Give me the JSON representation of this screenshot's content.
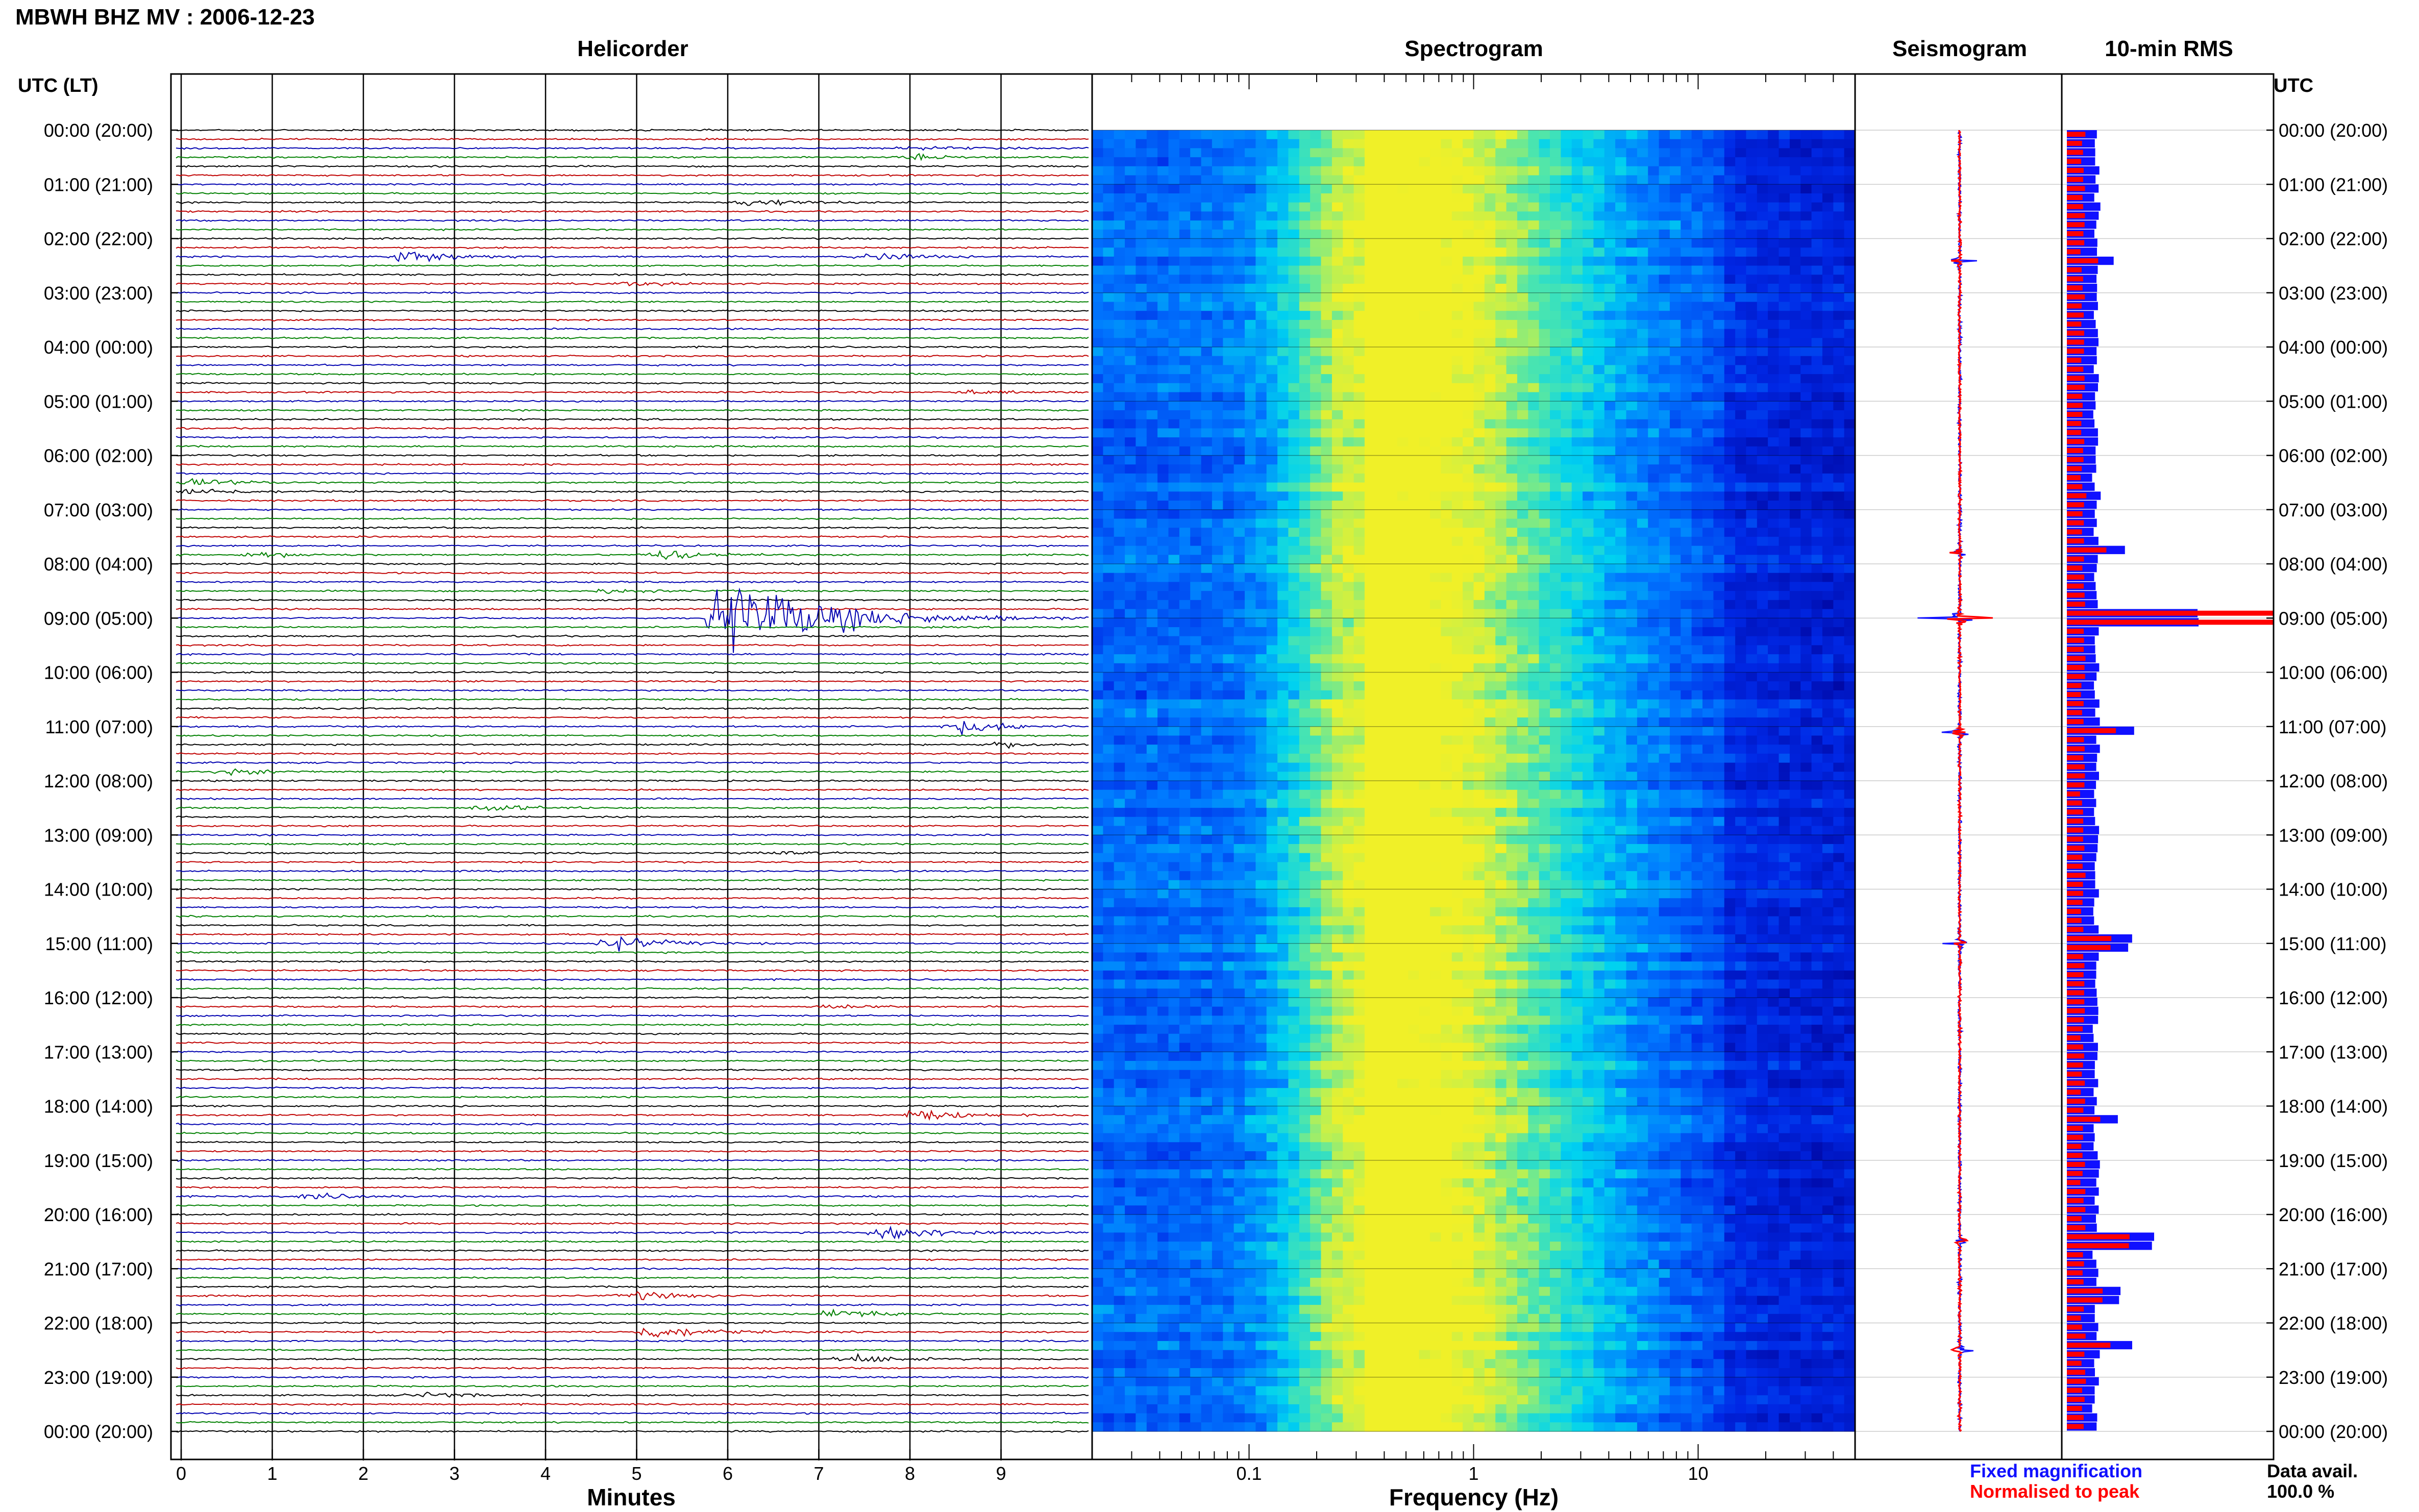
{
  "title": "MBWH BHZ MV : 2006-12-23",
  "panels": {
    "helicorder": "Helicorder",
    "spectrogram": "Spectrogram",
    "seismogram": "Seismogram",
    "rms": "10-min RMS"
  },
  "axis_labels": {
    "left_time": "UTC (LT)",
    "right_time": "UTC",
    "minutes": "Minutes",
    "frequency": "Frequency (Hz)"
  },
  "legend": {
    "fixed": "Fixed magnification",
    "normalised": "Normalised to peak",
    "data_avail_label": "Data avail.",
    "data_avail_value": "100.0 %"
  },
  "colors": {
    "black": "#000000",
    "red": "#c00000",
    "blue": "#0000b0",
    "green": "#008000",
    "rms_fixed": "#1010ff",
    "rms_norm": "#ff0000"
  },
  "chart_data": [
    {
      "type": "line",
      "title": "Helicorder",
      "xlabel": "Minutes",
      "x_ticks": [
        "0",
        "1",
        "2",
        "3",
        "4",
        "5",
        "6",
        "7",
        "8",
        "9"
      ],
      "xlim": [
        0,
        10
      ],
      "y_ticks": [
        "00:00 (20:00)",
        "01:00 (21:00)",
        "02:00 (22:00)",
        "03:00 (23:00)",
        "04:00 (00:00)",
        "05:00 (01:00)",
        "06:00 (02:00)",
        "07:00 (03:00)",
        "08:00 (04:00)",
        "09:00 (05:00)",
        "10:00 (06:00)",
        "11:00 (07:00)",
        "12:00 (08:00)",
        "13:00 (09:00)",
        "14:00 (10:00)",
        "15:00 (11:00)",
        "16:00 (12:00)",
        "17:00 (13:00)",
        "18:00 (14:00)",
        "19:00 (15:00)",
        "20:00 (16:00)",
        "21:00 (17:00)",
        "22:00 (18:00)",
        "23:00 (19:00)",
        "00:00 (20:00)"
      ],
      "lines_per_hour": 6,
      "trace_colors": [
        "black",
        "red",
        "blue",
        "green"
      ],
      "events": [
        {
          "hour": 0.4,
          "minute": 8.1,
          "amp": 0.6
        },
        {
          "hour": 1.3,
          "minute": 6.3,
          "amp": 1.2
        },
        {
          "hour": 2.3,
          "minute": 2.5,
          "amp": 2.0
        },
        {
          "hour": 2.3,
          "minute": 7.6,
          "amp": 1.2
        },
        {
          "hour": 2.8,
          "minute": 5.0,
          "amp": 0.6
        },
        {
          "hour": 4.8,
          "minute": 8.7,
          "amp": 0.6
        },
        {
          "hour": 6.6,
          "minute": 0.2,
          "amp": 1.0
        },
        {
          "hour": 7.8,
          "minute": 0.9,
          "amp": 0.8
        },
        {
          "hour": 7.8,
          "minute": 5.3,
          "amp": 1.5
        },
        {
          "hour": 8.5,
          "minute": 4.7,
          "amp": 0.6
        },
        {
          "hour": 9.0,
          "minute": 6.0,
          "amp": 12.0
        },
        {
          "hour": 11.0,
          "minute": 8.6,
          "amp": 2.0
        },
        {
          "hour": 11.3,
          "minute": 9.0,
          "amp": 0.8
        },
        {
          "hour": 11.8,
          "minute": 0.6,
          "amp": 0.8
        },
        {
          "hour": 12.5,
          "minute": 3.4,
          "amp": 1.0
        },
        {
          "hour": 13.3,
          "minute": 6.4,
          "amp": 0.6
        },
        {
          "hour": 15.0,
          "minute": 4.8,
          "amp": 2.0
        },
        {
          "hour": 16.1,
          "minute": 7.2,
          "amp": 0.6
        },
        {
          "hour": 18.1,
          "minute": 8.1,
          "amp": 1.5
        },
        {
          "hour": 19.6,
          "minute": 1.5,
          "amp": 0.8
        },
        {
          "hour": 20.3,
          "minute": 7.8,
          "amp": 2.5
        },
        {
          "hour": 21.5,
          "minute": 5.0,
          "amp": 1.2
        },
        {
          "hour": 21.8,
          "minute": 7.2,
          "amp": 1.5
        },
        {
          "hour": 22.1,
          "minute": 5.2,
          "amp": 2.0
        },
        {
          "hour": 22.6,
          "minute": 7.4,
          "amp": 1.2
        },
        {
          "hour": 23.3,
          "minute": 2.7,
          "amp": 0.8
        }
      ]
    },
    {
      "type": "heatmap",
      "title": "Spectrogram",
      "xlabel": "Frequency (Hz)",
      "x_scale": "log",
      "xlim": [
        0.02,
        50
      ],
      "x_ticks": [
        "0.1",
        "1",
        "10"
      ],
      "peak_frequency_hz": 0.3
    },
    {
      "type": "line",
      "title": "Seismogram",
      "bursts": [
        {
          "hour": 2.4,
          "amp": 0.3
        },
        {
          "hour": 7.8,
          "amp": 0.25
        },
        {
          "hour": 9.0,
          "amp": 1.0
        },
        {
          "hour": 11.1,
          "amp": 0.45
        },
        {
          "hour": 15.0,
          "amp": 0.3
        },
        {
          "hour": 20.5,
          "amp": 0.4
        },
        {
          "hour": 22.5,
          "amp": 0.25
        }
      ]
    },
    {
      "type": "bar",
      "title": "10-min RMS",
      "bins": 144,
      "series": [
        {
          "name": "Fixed magnification",
          "color": "rms_fixed"
        },
        {
          "name": "Normalised to peak",
          "color": "rms_norm"
        }
      ],
      "baseline_fraction": 0.1,
      "peaks": [
        {
          "hour": 1.5,
          "value": 0.12
        },
        {
          "hour": 2.4,
          "value": 0.25
        },
        {
          "hour": 6.8,
          "value": 0.15
        },
        {
          "hour": 7.8,
          "value": 0.35
        },
        {
          "hour": 9.0,
          "value": 1.0
        },
        {
          "hour": 11.1,
          "value": 0.45
        },
        {
          "hour": 15.0,
          "value": 0.4
        },
        {
          "hour": 18.2,
          "value": 0.3
        },
        {
          "hour": 20.5,
          "value": 0.6
        },
        {
          "hour": 21.5,
          "value": 0.3
        },
        {
          "hour": 22.4,
          "value": 0.4
        }
      ]
    }
  ]
}
